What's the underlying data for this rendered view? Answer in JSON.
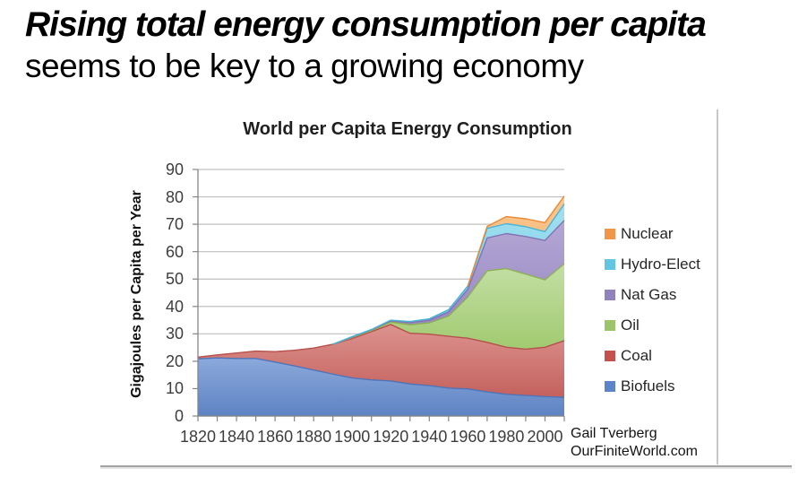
{
  "page": {
    "heading_line1": "Rising total energy consumption per capita",
    "heading_line2": "seems to be key to a growing economy",
    "attribution_line1": "Gail Tverberg",
    "attribution_line2": "OurFiniteWorld.com"
  },
  "chart_data": {
    "type": "area",
    "stacked": true,
    "title": "World per Capita Energy Consumption",
    "xlabel": "",
    "ylabel": "Gigajoules per Capita per Year",
    "ylim": [
      0,
      90
    ],
    "ytick_step": 10,
    "grid": true,
    "legend_position": "right",
    "x": [
      1820,
      1830,
      1840,
      1850,
      1860,
      1870,
      1880,
      1890,
      1900,
      1910,
      1920,
      1930,
      1940,
      1950,
      1960,
      1970,
      1980,
      1990,
      2000,
      2010
    ],
    "xtick_labels": [
      "1820",
      "1840",
      "1860",
      "1880",
      "1900",
      "1920",
      "1940",
      "1960",
      "1980",
      "2000"
    ],
    "series": [
      {
        "name": "Biofuels",
        "swatch": "#5b84c9",
        "fill_top": "#8ba9db",
        "fill_bottom": "#5e83c3",
        "stroke": "#4f74b8",
        "values": [
          20.9,
          21.2,
          21.0,
          21.0,
          19.7,
          18.3,
          16.8,
          15.3,
          13.9,
          13.2,
          12.8,
          11.7,
          11.1,
          10.2,
          9.9,
          8.8,
          7.9,
          7.5,
          7.1,
          6.8
        ]
      },
      {
        "name": "Coal",
        "swatch": "#c4514d",
        "fill_top": "#dd938f",
        "fill_bottom": "#c4615d",
        "stroke": "#b6504c",
        "values": [
          0.6,
          1.1,
          2.0,
          2.7,
          3.8,
          5.7,
          8.0,
          10.9,
          14.4,
          17.6,
          20.6,
          18.5,
          18.8,
          18.9,
          18.5,
          18.1,
          17.2,
          16.9,
          18.0,
          20.7
        ]
      },
      {
        "name": "Oil",
        "swatch": "#9dc36b",
        "fill_top": "#c3dfa4",
        "fill_bottom": "#9ec86c",
        "stroke": "#8db054",
        "values": [
          0,
          0,
          0,
          0,
          0,
          0,
          0,
          0,
          0.4,
          0.4,
          0.9,
          3.1,
          4.1,
          7.4,
          15.1,
          26.1,
          28.7,
          27.4,
          24.6,
          28.1
        ]
      },
      {
        "name": "Nat Gas",
        "swatch": "#9182bd",
        "fill_top": "#b4a7d4",
        "fill_bottom": "#8f7fbc",
        "stroke": "#8273b2",
        "values": [
          0,
          0,
          0,
          0,
          0,
          0,
          0,
          0,
          0.2,
          0.3,
          0.4,
          0.8,
          1.0,
          1.5,
          2.8,
          12.0,
          12.8,
          13.7,
          14.4,
          15.8
        ]
      },
      {
        "name": "Hydro-Elect",
        "swatch": "#62c6e3",
        "fill_top": "#a3e0f0",
        "fill_bottom": "#62c6e3",
        "stroke": "#4ab4d6",
        "values": [
          0,
          0,
          0,
          0,
          0,
          0,
          0,
          0,
          0.1,
          0.1,
          0.3,
          0.4,
          0.5,
          0.8,
          1.2,
          3.5,
          3.6,
          3.6,
          3.2,
          6.0
        ]
      },
      {
        "name": "Nuclear",
        "swatch": "#f0954a",
        "fill_top": "#fbc992",
        "fill_bottom": "#f29b4d",
        "stroke": "#e88a35",
        "values": [
          0,
          0,
          0,
          0,
          0,
          0,
          0,
          0,
          0,
          0,
          0,
          0,
          0,
          0,
          0,
          0.7,
          2.6,
          2.9,
          3.3,
          2.9
        ]
      }
    ],
    "colors": {
      "gridline": "#bfbfbf",
      "axis": "#858585",
      "tick_label": "#3d3d3d"
    }
  }
}
